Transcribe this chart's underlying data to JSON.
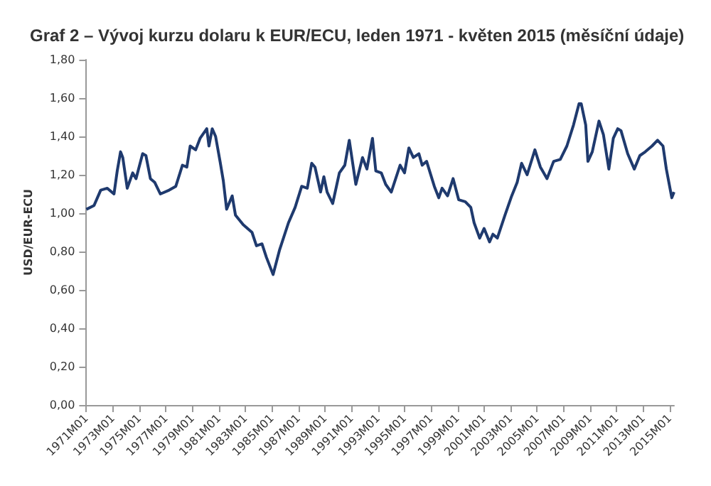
{
  "chart_data": {
    "type": "line",
    "title": "Graf 2 – Vývoj kurzu dolaru k EUR/ECU, leden 1971 - květen 2015 (měsíční údaje)",
    "ylabel": "USD/EUR-ECU",
    "x": [
      "1971-01",
      "1971-08",
      "1972-02",
      "1972-08",
      "1973-02",
      "1973-05",
      "1973-08",
      "1973-10",
      "1974-02",
      "1974-07",
      "1974-10",
      "1975-04",
      "1975-07",
      "1975-11",
      "1976-03",
      "1976-08",
      "1977-04",
      "1977-10",
      "1978-04",
      "1978-08",
      "1978-11",
      "1979-04",
      "1979-08",
      "1980-02",
      "1980-04",
      "1980-07",
      "1980-10",
      "1981-02",
      "1981-05",
      "1981-08",
      "1982-01",
      "1982-04",
      "1982-11",
      "1983-07",
      "1983-11",
      "1984-04",
      "1984-08",
      "1985-02",
      "1985-08",
      "1986-04",
      "1986-10",
      "1987-04",
      "1987-09",
      "1988-01",
      "1988-04",
      "1988-09",
      "1988-12",
      "1989-03",
      "1989-08",
      "1990-02",
      "1990-07",
      "1990-11",
      "1991-05",
      "1991-11",
      "1992-03",
      "1992-08",
      "1992-11",
      "1993-04",
      "1993-08",
      "1994-01",
      "1994-09",
      "1995-01",
      "1995-05",
      "1995-09",
      "1996-02",
      "1996-05",
      "1996-09",
      "1997-04",
      "1997-08",
      "1997-11",
      "1998-04",
      "1998-09",
      "1999-02",
      "1999-08",
      "2000-01",
      "2000-04",
      "2000-09",
      "2001-01",
      "2001-06",
      "2001-09",
      "2002-01",
      "2002-08",
      "2003-02",
      "2003-07",
      "2003-11",
      "2004-04",
      "2004-11",
      "2005-04",
      "2005-10",
      "2006-04",
      "2006-10",
      "2007-04",
      "2007-10",
      "2008-03",
      "2008-05",
      "2008-09",
      "2008-11",
      "2009-03",
      "2009-09",
      "2010-01",
      "2010-06",
      "2010-10",
      "2011-02",
      "2011-05",
      "2011-11",
      "2012-05",
      "2012-10",
      "2013-03",
      "2013-09",
      "2014-02",
      "2014-07",
      "2014-10",
      "2015-03",
      "2015-05"
    ],
    "series": [
      {
        "color": "#1f3a6e",
        "values": [
          1.02,
          1.04,
          1.12,
          1.13,
          1.1,
          1.22,
          1.32,
          1.29,
          1.13,
          1.21,
          1.18,
          1.31,
          1.3,
          1.18,
          1.16,
          1.1,
          1.12,
          1.14,
          1.25,
          1.24,
          1.35,
          1.33,
          1.39,
          1.44,
          1.35,
          1.44,
          1.4,
          1.27,
          1.17,
          1.02,
          1.09,
          0.99,
          0.94,
          0.9,
          0.83,
          0.84,
          0.77,
          0.68,
          0.81,
          0.95,
          1.03,
          1.14,
          1.13,
          1.26,
          1.24,
          1.11,
          1.19,
          1.11,
          1.05,
          1.21,
          1.25,
          1.38,
          1.15,
          1.29,
          1.23,
          1.39,
          1.22,
          1.21,
          1.15,
          1.11,
          1.25,
          1.21,
          1.34,
          1.29,
          1.31,
          1.25,
          1.27,
          1.14,
          1.08,
          1.13,
          1.09,
          1.18,
          1.07,
          1.06,
          1.03,
          0.95,
          0.87,
          0.92,
          0.85,
          0.89,
          0.87,
          0.99,
          1.09,
          1.16,
          1.26,
          1.2,
          1.33,
          1.24,
          1.18,
          1.27,
          1.28,
          1.35,
          1.46,
          1.57,
          1.57,
          1.46,
          1.27,
          1.32,
          1.48,
          1.41,
          1.23,
          1.39,
          1.44,
          1.43,
          1.31,
          1.23,
          1.3,
          1.32,
          1.35,
          1.38,
          1.35,
          1.23,
          1.08,
          1.11
        ]
      }
    ],
    "xlim": [
      "1971-01",
      "2015-05"
    ],
    "xticks": [
      {
        "value": "1971-01",
        "label": "1971M01"
      },
      {
        "value": "1973-01",
        "label": "1973M01"
      },
      {
        "value": "1975-01",
        "label": "1975M01"
      },
      {
        "value": "1977-01",
        "label": "1977M01"
      },
      {
        "value": "1979-01",
        "label": "1979M01"
      },
      {
        "value": "1981-01",
        "label": "1981M01"
      },
      {
        "value": "1983-01",
        "label": "1983M01"
      },
      {
        "value": "1985-01",
        "label": "1985M01"
      },
      {
        "value": "1987-01",
        "label": "1987M01"
      },
      {
        "value": "1989-01",
        "label": "1989M01"
      },
      {
        "value": "1991-01",
        "label": "1991M01"
      },
      {
        "value": "1993-01",
        "label": "1993M01"
      },
      {
        "value": "1995-01",
        "label": "1995M01"
      },
      {
        "value": "1997-01",
        "label": "1997M01"
      },
      {
        "value": "1999-01",
        "label": "1999M01"
      },
      {
        "value": "2001-01",
        "label": "2001M01"
      },
      {
        "value": "2003-01",
        "label": "2003M01"
      },
      {
        "value": "2005-01",
        "label": "2005M01"
      },
      {
        "value": "2007-01",
        "label": "2007M01"
      },
      {
        "value": "2009-01",
        "label": "2009M01"
      },
      {
        "value": "2011-01",
        "label": "2011M01"
      },
      {
        "value": "2013-01",
        "label": "2013M01"
      },
      {
        "value": "2015-01",
        "label": "2015M01"
      }
    ],
    "ylim": [
      0,
      1.8
    ],
    "yticks": [
      {
        "value": 0,
        "label": "0,00"
      },
      {
        "value": 0.2,
        "label": "0,20"
      },
      {
        "value": 0.4,
        "label": "0,40"
      },
      {
        "value": 0.6,
        "label": "0,60"
      },
      {
        "value": 0.8,
        "label": "0,80"
      },
      {
        "value": 1,
        "label": "1,00"
      },
      {
        "value": 1.2,
        "label": "1,20"
      },
      {
        "value": 1.4,
        "label": "1,40"
      },
      {
        "value": 1.6,
        "label": "1,60"
      },
      {
        "value": 1.8,
        "label": "1,80"
      }
    ],
    "grid": false,
    "marker": "none",
    "line_style": "solid"
  }
}
